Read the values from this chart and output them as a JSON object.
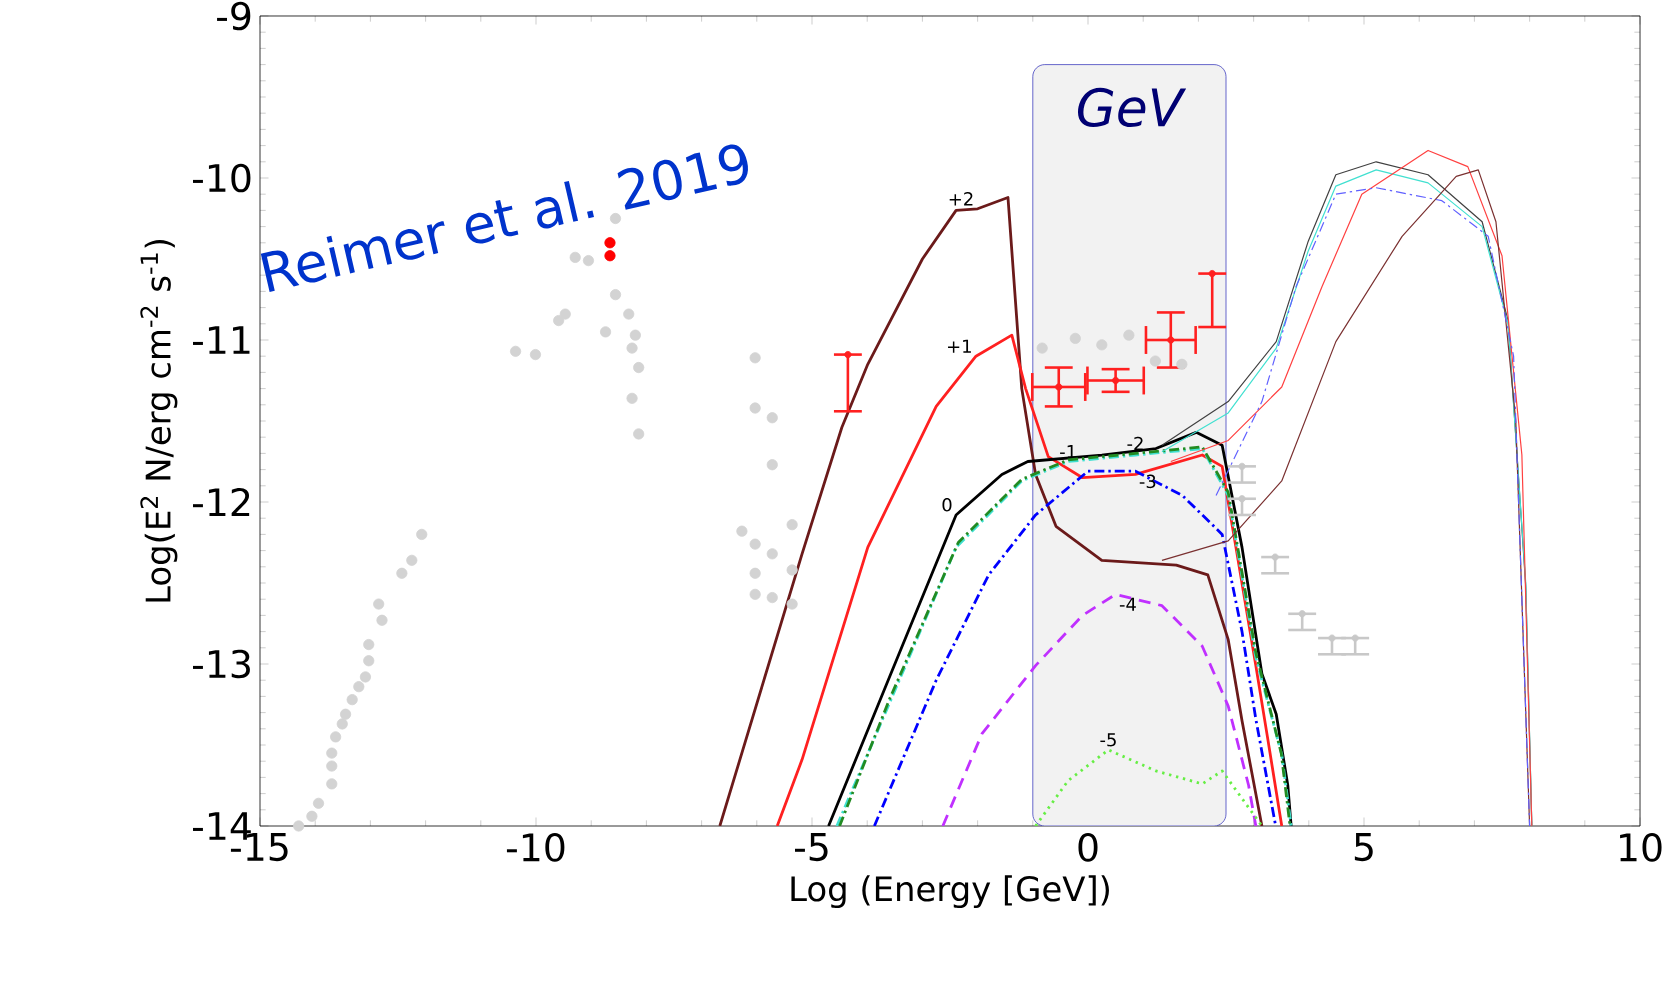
{
  "chart_data": {
    "type": "line",
    "xlabel": "Log (Energy [GeV])",
    "ylabel": "Log(E$^{2}$ N/erg cm$^{-2}$ s$^{-1}$)",
    "xlim": [
      -15,
      10
    ],
    "ylim": [
      -14,
      -9
    ],
    "xticks": [
      -15,
      -10,
      -5,
      0,
      5,
      10
    ],
    "yticks": [
      -14,
      -13,
      -12,
      -11,
      -10,
      -9
    ],
    "marker": "none",
    "annotations": [
      "Reimer et al. 2019"
    ],
    "bands": [
      {
        "axis": "x",
        "from": -1,
        "to": 2.5,
        "label": "GeV",
        "color": "#f2f2f2"
      }
    ],
    "series": [
      {
        "name": "+2",
        "color": "#6b1a1a",
        "line_style": "solid",
        "x": [
          -6.67,
          -5.18,
          -4.46,
          -3.99,
          -3.0,
          -2.39,
          -2.0,
          -1.45,
          -1.2,
          -0.95,
          -0.58,
          0.25,
          1.6,
          2.17,
          2.54,
          2.79,
          3.15
        ],
        "values": [
          -14,
          -12.32,
          -11.54,
          -11.15,
          -10.5,
          -10.2,
          -10.19,
          -10.12,
          -11.3,
          -11.83,
          -12.15,
          -12.36,
          -12.39,
          -12.45,
          -12.85,
          -13.35,
          -14
        ]
      },
      {
        "name": "+1",
        "color": "#ff2020",
        "line_style": "solid",
        "x": [
          -5.63,
          -5.18,
          -3.99,
          -2.75,
          -2.03,
          -1.38,
          -1.13,
          -0.72,
          -0.1,
          0.86,
          2.07,
          2.43,
          2.68,
          3.04,
          3.26,
          3.51
        ],
        "values": [
          -14,
          -13.59,
          -12.28,
          -11.41,
          -11.1,
          -10.97,
          -11.3,
          -11.72,
          -11.85,
          -11.83,
          -11.71,
          -11.78,
          -12.28,
          -13.01,
          -13.47,
          -14
        ]
      },
      {
        "name": "0",
        "color": "#000000",
        "line_style": "solid",
        "x": [
          -4.7,
          -3.62,
          -2.39,
          -1.56,
          -1.09,
          0.25,
          1.23,
          1.96,
          2.43,
          2.79,
          3.15,
          3.41,
          3.62,
          3.68
        ],
        "values": [
          -14,
          -13.1,
          -12.08,
          -11.83,
          -11.75,
          -11.71,
          -11.67,
          -11.57,
          -11.65,
          -12.28,
          -13.06,
          -13.31,
          -13.75,
          -14
        ]
      },
      {
        "name": "-1",
        "color": "#40e0d0",
        "line_style": "dashdot",
        "x": [
          -4.55,
          -3.62,
          -2.39,
          -1.2,
          -0.36,
          0.86,
          2.07,
          2.54,
          3.04,
          3.51,
          3.68
        ],
        "values": [
          -14,
          -13.26,
          -12.28,
          -11.87,
          -11.75,
          -11.71,
          -11.67,
          -11.96,
          -12.96,
          -13.56,
          -14
        ]
      },
      {
        "name": "-2",
        "color": "#228b22",
        "line_style": "dashdot",
        "x": [
          -4.5,
          -3.6,
          -2.35,
          -1.2,
          -0.36,
          0.86,
          2.07,
          2.54,
          3.04,
          3.5,
          3.66
        ],
        "values": [
          -14,
          -13.22,
          -12.25,
          -11.86,
          -11.74,
          -11.7,
          -11.66,
          -11.94,
          -12.93,
          -13.55,
          -14
        ]
      },
      {
        "name": "-3",
        "color": "#0000ff",
        "line_style": "dashdot",
        "x": [
          -3.87,
          -2.75,
          -1.8,
          -0.95,
          0.0,
          0.86,
          1.71,
          2.43,
          2.79,
          3.04,
          3.4
        ],
        "values": [
          -14,
          -13.1,
          -12.45,
          -12.08,
          -11.81,
          -11.81,
          -11.96,
          -12.2,
          -12.8,
          -13.34,
          -14
        ]
      },
      {
        "name": "-4",
        "color": "#c030ff",
        "line_style": "dashed",
        "x": [
          -2.63,
          -1.92,
          -0.95,
          -0.1,
          0.5,
          1.34,
          2.07,
          2.54,
          2.91,
          3.04
        ],
        "values": [
          -14,
          -13.43,
          -13.01,
          -12.7,
          -12.57,
          -12.64,
          -12.89,
          -13.26,
          -13.75,
          -14
        ]
      },
      {
        "name": "-5",
        "color": "#66ee44",
        "line_style": "dotted",
        "x": [
          -0.95,
          -0.36,
          0.37,
          1.23,
          2.07,
          2.43,
          3.15
        ],
        "values": [
          -14,
          -13.72,
          -13.53,
          -13.66,
          -13.74,
          -13.66,
          -14
        ]
      },
      {
        "color": "#404040",
        "line_style": "solid",
        "x": [
          1.34,
          2.54,
          3.41,
          3.99,
          4.49,
          5.22,
          6.16,
          7.14,
          7.61,
          7.93,
          8.04
        ],
        "values": [
          -11.65,
          -11.38,
          -11.01,
          -10.39,
          -9.98,
          -9.9,
          -9.98,
          -10.27,
          -10.88,
          -12.52,
          -14
        ]
      },
      {
        "color": "#40e0d0",
        "line_style": "solid",
        "x": [
          1.34,
          2.54,
          3.41,
          3.99,
          4.49,
          5.22,
          6.16,
          7.14,
          7.61,
          7.93,
          8.04
        ],
        "values": [
          -11.69,
          -11.45,
          -11.05,
          -10.45,
          -10.05,
          -9.95,
          -10.03,
          -10.3,
          -10.9,
          -12.5,
          -14
        ]
      },
      {
        "color": "#ff4040",
        "line_style": "solid",
        "x": [
          1.5,
          2.54,
          3.51,
          4.24,
          4.96,
          6.16,
          6.88,
          7.5,
          7.86,
          8.04
        ],
        "values": [
          -11.75,
          -11.62,
          -11.29,
          -10.67,
          -10.1,
          -9.83,
          -9.93,
          -10.48,
          -11.71,
          -14
        ]
      },
      {
        "color": "#7a3030",
        "line_style": "solid",
        "x": [
          1.34,
          2.54,
          3.51,
          4.49,
          5.69,
          6.67,
          7.07,
          7.39,
          7.75,
          8.0
        ],
        "values": [
          -12.36,
          -12.24,
          -11.87,
          -11.01,
          -10.36,
          -9.99,
          -9.95,
          -10.27,
          -11.5,
          -14
        ]
      },
      {
        "color": "#6060ff",
        "line_style": "dashdot",
        "x": [
          2.32,
          3.15,
          3.77,
          4.49,
          5.22,
          6.41,
          7.25,
          7.71,
          8.0
        ],
        "values": [
          -11.96,
          -11.38,
          -10.67,
          -10.1,
          -10.06,
          -10.14,
          -10.36,
          -11.1,
          -14
        ]
      },
      {
        "type": "scatter",
        "marker": "circle",
        "color": "#d3d3d3",
        "x": [
          -14.3,
          -14.06,
          -13.94,
          -13.7,
          -13.7,
          -13.7,
          -13.63,
          -13.51,
          -13.45,
          -13.33,
          -13.21,
          -13.09,
          -13.03,
          -13.03,
          -12.79,
          -12.85,
          -12.43,
          -12.25,
          -12.07,
          -10.37,
          -10.01,
          -9.59,
          -9.47,
          -9.29,
          -9.05,
          -8.56,
          -8.56,
          -8.32,
          -8.2,
          -8.74,
          -8.26,
          -8.14,
          -8.26,
          -8.14,
          -6.03,
          -6.03,
          -5.72,
          -5.72,
          -6.27,
          -6.03,
          -5.72,
          -5.36,
          -6.03,
          -5.36,
          -6.03,
          -5.72,
          -5.36,
          -0.83,
          -0.23,
          0.25,
          0.74,
          1.22,
          1.7
        ],
        "values": [
          -14.0,
          -13.94,
          -13.86,
          -13.74,
          -13.63,
          -13.55,
          -13.45,
          -13.37,
          -13.31,
          -13.22,
          -13.14,
          -13.08,
          -12.98,
          -12.88,
          -12.73,
          -12.63,
          -12.44,
          -12.36,
          -12.2,
          -11.07,
          -11.09,
          -10.88,
          -10.84,
          -10.49,
          -10.51,
          -10.25,
          -10.72,
          -10.84,
          -10.97,
          -10.95,
          -11.05,
          -11.17,
          -11.36,
          -11.58,
          -11.11,
          -11.42,
          -11.48,
          -11.77,
          -12.18,
          -12.26,
          -12.32,
          -12.14,
          -12.44,
          -12.42,
          -12.57,
          -12.59,
          -12.63,
          -11.05,
          -10.99,
          -11.03,
          -10.97,
          -11.13,
          -11.15
        ]
      },
      {
        "type": "scatter",
        "marker": "circle",
        "color": "#c8c8c8",
        "x": [
          2.79,
          2.79,
          3.39,
          3.88,
          4.42,
          4.84
        ],
        "values": [
          -11.78,
          -11.98,
          -12.34,
          -12.69,
          -12.84,
          -12.84
        ],
        "errors": [
          [
            -11.88,
            -11.78
          ],
          [
            -12.08,
            -11.98
          ],
          [
            -12.44,
            -12.34
          ],
          [
            -12.79,
            -12.69
          ],
          [
            -12.94,
            -12.84
          ],
          [
            -12.94,
            -12.84
          ]
        ]
      },
      {
        "type": "scatter",
        "marker": "circle",
        "color": "#ff0000",
        "x": [
          -8.66,
          -8.66
        ],
        "values": [
          -10.4,
          -10.48
        ]
      },
      {
        "type": "scatter",
        "marker": "circle",
        "color": "#ff2020",
        "x": [
          -0.53,
          0.5,
          1.5
        ],
        "values": [
          -11.29,
          -11.25,
          -11.0
        ],
        "errors": [
          0.12,
          0.07,
          0.17
        ],
        "xerrors": [
          0.48,
          0.51,
          0.45
        ]
      },
      {
        "type": "scatter",
        "marker": "circle",
        "color": "#ff2020",
        "x": [
          -4.35,
          2.25
        ],
        "values": [
          -11.09,
          -10.59
        ],
        "errors": [
          [
            -11.44,
            -11.09
          ],
          [
            -10.92,
            -10.59
          ]
        ]
      }
    ]
  }
}
